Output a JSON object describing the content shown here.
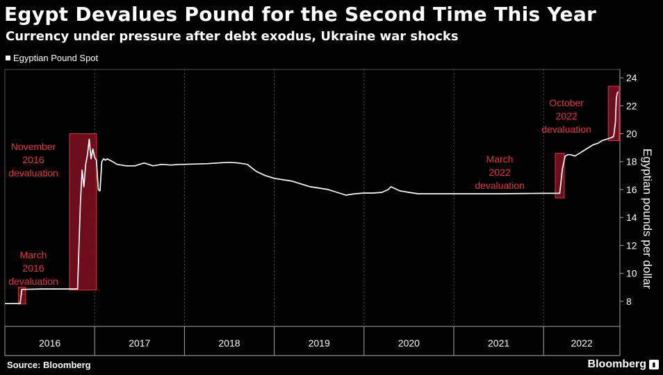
{
  "header": {
    "title": "Egypt Devalues Pound for the Second Time This Year",
    "subtitle": "Currency under pressure after debt exodus, Ukraine war shocks"
  },
  "footer": {
    "source": "Source: Bloomberg",
    "brand": "Bloomberg"
  },
  "colors": {
    "background": "#000000",
    "line": "#ffffff",
    "grid": "#555555",
    "highlight_fill": "#7a1020",
    "highlight_stroke": "#d8393d",
    "annotation_text": "#e0393e"
  },
  "icons": {
    "brand": "bloomberg-chart-badge-icon"
  },
  "chart_data": {
    "type": "line",
    "title": "Egypt Devalues Pound for the Second Time This Year",
    "subtitle": "Currency under pressure after debt exodus, Ukraine war shocks",
    "xlabel": "",
    "ylabel": "Egyptian pounds per dollar",
    "y_axis_position": "right",
    "ylim": [
      6.2,
      24.6
    ],
    "xlim": [
      2016.0,
      2022.85
    ],
    "yticks": [
      8,
      10,
      12,
      14,
      16,
      18,
      20,
      22,
      24
    ],
    "x_tick_labels": [
      "2016",
      "2017",
      "2018",
      "2019",
      "2020",
      "2021",
      "2022"
    ],
    "grid": "vertical dotted",
    "legend_position": "top-left",
    "series": [
      {
        "name": "Egyptian Pound Spot",
        "x": [
          2016.0,
          2016.17,
          2016.19,
          2016.22,
          2016.4,
          2016.6,
          2016.72,
          2016.81,
          2016.83,
          2016.84,
          2016.86,
          2016.88,
          2016.9,
          2016.92,
          2016.94,
          2016.96,
          2016.98,
          2017.0,
          2017.02,
          2017.04,
          2017.06,
          2017.08,
          2017.1,
          2017.12,
          2017.14,
          2017.17,
          2017.2,
          2017.25,
          2017.35,
          2017.45,
          2017.55,
          2017.65,
          2017.75,
          2017.85,
          2017.95,
          2018.0,
          2018.25,
          2018.5,
          2018.6,
          2018.7,
          2018.8,
          2018.9,
          2019.0,
          2019.1,
          2019.2,
          2019.3,
          2019.4,
          2019.5,
          2019.6,
          2019.7,
          2019.8,
          2019.9,
          2020.0,
          2020.1,
          2020.2,
          2020.27,
          2020.3,
          2020.4,
          2020.5,
          2020.6,
          2020.7,
          2020.8,
          2021.0,
          2021.2,
          2021.5,
          2021.8,
          2022.0,
          2022.18,
          2022.21,
          2022.24,
          2022.27,
          2022.3,
          2022.35,
          2022.4,
          2022.45,
          2022.5,
          2022.55,
          2022.6,
          2022.65,
          2022.7,
          2022.75,
          2022.78,
          2022.8,
          2022.81,
          2022.82,
          2022.83
        ],
        "values": [
          7.83,
          7.83,
          8.85,
          8.85,
          8.88,
          8.88,
          8.88,
          8.88,
          12.8,
          14.8,
          17.4,
          16.2,
          17.8,
          18.5,
          19.6,
          18.2,
          18.9,
          18.3,
          18.1,
          16.0,
          15.9,
          18.0,
          18.2,
          18.1,
          18.2,
          18.1,
          18.0,
          17.8,
          17.7,
          17.7,
          17.9,
          17.7,
          17.8,
          17.75,
          17.8,
          17.8,
          17.85,
          17.95,
          17.9,
          17.8,
          17.3,
          17.0,
          16.8,
          16.7,
          16.6,
          16.4,
          16.2,
          16.1,
          16.0,
          15.8,
          15.6,
          15.7,
          15.75,
          15.75,
          15.8,
          16.0,
          16.2,
          15.9,
          15.8,
          15.7,
          15.7,
          15.7,
          15.7,
          15.7,
          15.7,
          15.72,
          15.73,
          15.73,
          17.5,
          18.4,
          18.5,
          18.5,
          18.4,
          18.6,
          18.8,
          19.0,
          19.2,
          19.3,
          19.5,
          19.6,
          19.7,
          19.8,
          20.8,
          22.5,
          22.9,
          23.0
        ]
      }
    ],
    "annotations": [
      {
        "text": "March 2016 devaluation",
        "lines": [
          "March",
          "2016",
          "devaluation"
        ],
        "x_range": [
          2016.15,
          2016.23
        ],
        "y_range": [
          7.8,
          9.0
        ]
      },
      {
        "text": "November 2016 devaluation",
        "lines": [
          "November",
          "2016",
          "devaluation"
        ],
        "x_range": [
          2016.72,
          2017.02
        ],
        "y_range": [
          8.8,
          20.0
        ]
      },
      {
        "text": "March 2022 devaluation",
        "lines": [
          "March",
          "2022",
          "devaluation"
        ],
        "x_range": [
          2022.13,
          2022.23
        ],
        "y_range": [
          15.4,
          18.6
        ]
      },
      {
        "text": "October 2022 devaluation",
        "lines": [
          "October",
          "2022",
          "devaluation"
        ],
        "x_range": [
          2022.72,
          2022.84
        ],
        "y_range": [
          19.5,
          23.4
        ]
      }
    ]
  }
}
